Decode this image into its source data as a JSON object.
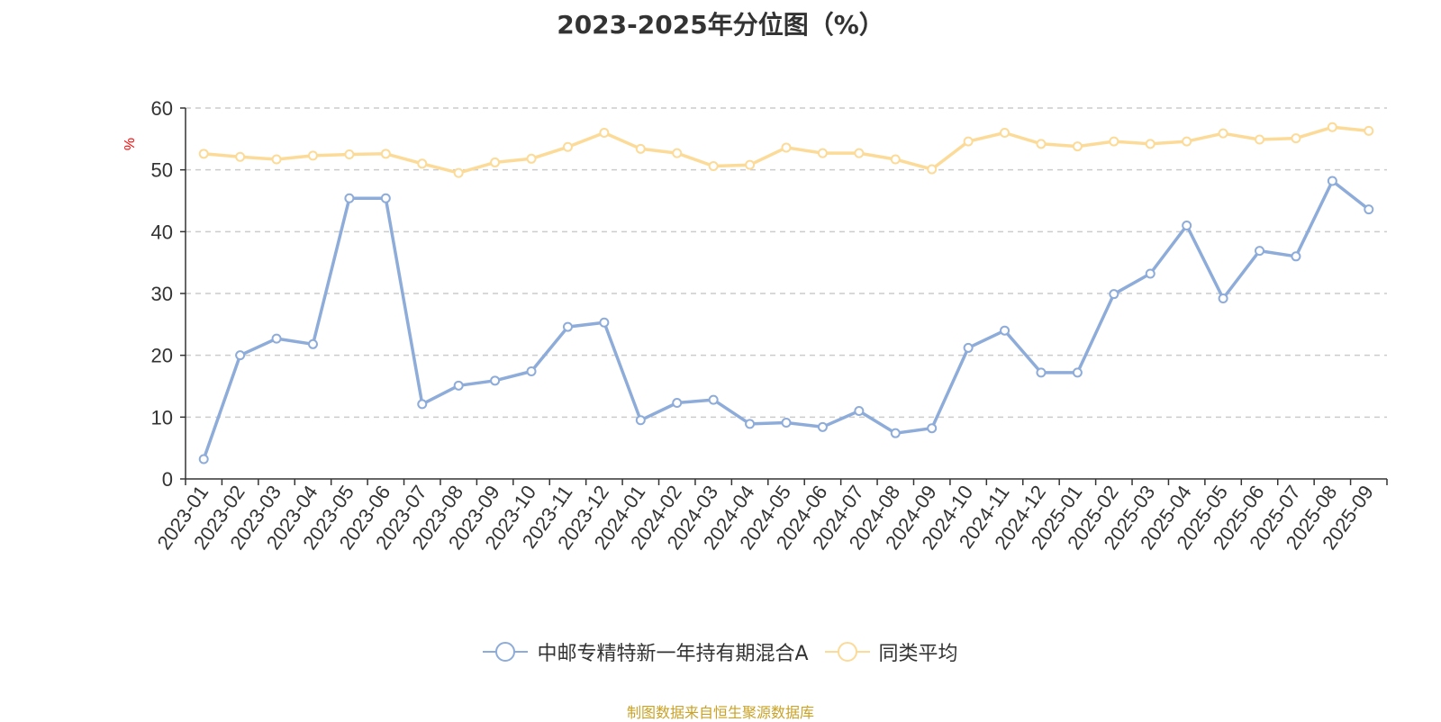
{
  "chart_data": {
    "type": "line",
    "title": "2023-2025年分位图（%）",
    "ylabel": "%",
    "ylim": [
      0,
      60
    ],
    "yticks": [
      0,
      10,
      20,
      30,
      40,
      50,
      60
    ],
    "grid": true,
    "legend_position": "bottom",
    "categories": [
      "2023-01",
      "2023-02",
      "2023-03",
      "2023-04",
      "2023-05",
      "2023-06",
      "2023-07",
      "2023-08",
      "2023-09",
      "2023-10",
      "2023-11",
      "2023-12",
      "2024-01",
      "2024-02",
      "2024-03",
      "2024-04",
      "2024-05",
      "2024-06",
      "2024-07",
      "2024-08",
      "2024-09",
      "2024-10",
      "2024-11",
      "2024-12",
      "2025-01",
      "2025-02",
      "2025-03",
      "2025-04",
      "2025-05",
      "2025-06",
      "2025-07",
      "2025-08",
      "2025-09"
    ],
    "series": [
      {
        "name": "中邮专精特新一年持有期混合A",
        "color": "#8eacd9",
        "values": [
          3.2,
          20.0,
          22.7,
          21.8,
          45.4,
          45.4,
          12.1,
          15.1,
          15.9,
          17.4,
          24.6,
          25.3,
          9.5,
          12.3,
          12.8,
          8.9,
          9.1,
          8.4,
          11.0,
          7.4,
          8.2,
          21.2,
          24.0,
          17.2,
          17.2,
          29.9,
          33.2,
          41.0,
          29.2,
          36.9,
          36.0,
          48.2,
          43.6
        ]
      },
      {
        "name": "同类平均",
        "color": "#fcdb98",
        "values": [
          52.6,
          52.1,
          51.7,
          52.3,
          52.5,
          52.6,
          51.0,
          49.5,
          51.2,
          51.8,
          53.7,
          56.0,
          53.4,
          52.7,
          50.6,
          50.8,
          53.6,
          52.7,
          52.7,
          51.7,
          50.1,
          54.6,
          56.0,
          54.2,
          53.8,
          54.6,
          54.2,
          54.6,
          55.9,
          54.9,
          55.1,
          56.9,
          56.3
        ]
      }
    ]
  },
  "footer": {
    "source": "制图数据来自恒生聚源数据库"
  }
}
